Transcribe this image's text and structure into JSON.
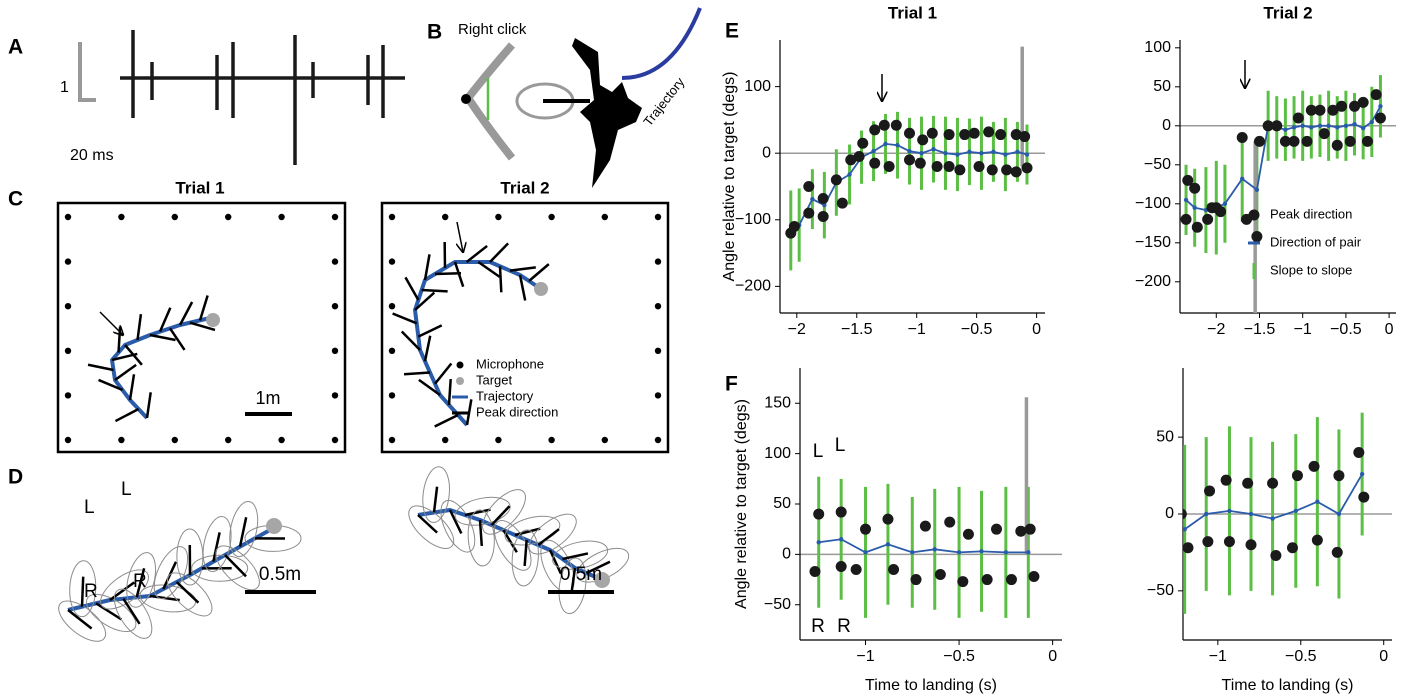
{
  "panels": {
    "a": {
      "label": "A",
      "scale_y": "1",
      "scale_x": "20 ms"
    },
    "b": {
      "label": "B",
      "click": "Right click",
      "trajectory": "Trajectory"
    },
    "c": {
      "label": "C",
      "titles": [
        "Trial 1",
        "Trial 2"
      ],
      "legend": [
        "Microphone",
        "Target",
        "Trajectory",
        "Peak direction"
      ],
      "scale": "1m"
    },
    "d": {
      "label": "D",
      "sides": [
        "L",
        "L",
        "R",
        "R"
      ],
      "scales": [
        "0.5m",
        "0.5m"
      ]
    },
    "e": {
      "label": "E"
    },
    "f": {
      "label": "F"
    }
  },
  "chart_data": [
    {
      "type": "errorbar",
      "title": "Trial 1",
      "ylabel": "Angle relative to target (degs)",
      "xlim": [
        -2.14,
        0.07
      ],
      "ylim": [
        -240,
        170
      ],
      "xticks": [
        {
          "value": -2,
          "label": "−2"
        },
        {
          "value": -1.5,
          "label": "−1.5"
        },
        {
          "value": -1,
          "label": "−1"
        },
        {
          "value": -0.5,
          "label": "−0.5"
        },
        0
      ],
      "yticks": [
        {
          "value": -200,
          "label": "−200"
        },
        {
          "value": -100,
          "label": "−100"
        },
        0,
        100
      ],
      "series": [
        {
          "name": "Peak direction",
          "kind": "scatter",
          "color": "#1a1a1a",
          "x": [
            -2.05,
            -2.02,
            -1.9,
            -1.9,
            -1.78,
            -1.78,
            -1.67,
            -1.62,
            -1.55,
            -1.48,
            -1.45,
            -1.35,
            -1.35,
            -1.27,
            -1.23,
            -1.17,
            -1.06,
            -1.06,
            -0.97,
            -0.95,
            -0.87,
            -0.83,
            -0.73,
            -0.73,
            -0.64,
            -0.6,
            -0.52,
            -0.48,
            -0.4,
            -0.37,
            -0.3,
            -0.25,
            -0.17,
            -0.17,
            -0.1,
            -0.08
          ],
          "values": [
            -120,
            -110,
            -90,
            -50,
            -95,
            -68,
            -40,
            -75,
            -10,
            -5,
            15,
            -15,
            35,
            42,
            -20,
            42,
            -10,
            30,
            -15,
            20,
            30,
            -20,
            28,
            -20,
            -25,
            28,
            30,
            -20,
            32,
            -25,
            28,
            -25,
            -28,
            28,
            25,
            -22
          ]
        },
        {
          "name": "Direction of pair",
          "kind": "line",
          "color": "#2a5caa",
          "x": [
            -2.05,
            -1.98,
            -1.87,
            -1.77,
            -1.67,
            -1.56,
            -1.46,
            -1.36,
            -1.26,
            -1.16,
            -1.06,
            -0.96,
            -0.86,
            -0.76,
            -0.66,
            -0.56,
            -0.46,
            -0.36,
            -0.26,
            -0.16,
            -0.08
          ],
          "values": [
            -116,
            -108,
            -69,
            -78,
            -44,
            -32,
            -6,
            3,
            14,
            12,
            3,
            0,
            6,
            0,
            -2,
            2,
            0,
            2,
            -2,
            2,
            -2
          ]
        },
        {
          "name": "Slope to slope",
          "kind": "errorbar",
          "color": "#5cbf45",
          "x": [
            -2.05,
            -1.98,
            -1.87,
            -1.77,
            -1.67,
            -1.56,
            -1.46,
            -1.36,
            -1.26,
            -1.16,
            -1.06,
            -0.96,
            -0.86,
            -0.76,
            -0.66,
            -0.56,
            -0.46,
            -0.36,
            -0.26,
            -0.16,
            -0.08
          ],
          "values": [
            -116,
            -108,
            -69,
            -78,
            -44,
            -32,
            -6,
            3,
            14,
            12,
            3,
            0,
            6,
            0,
            -2,
            2,
            0,
            2,
            -2,
            2,
            -2
          ],
          "errors": [
            60,
            55,
            45,
            50,
            50,
            45,
            40,
            45,
            45,
            50,
            50,
            55,
            50,
            55,
            55,
            50,
            55,
            45,
            55,
            45,
            45
          ]
        },
        {
          "kind": "errorbar",
          "color": "#999999",
          "x": [
            -0.12
          ],
          "values": [
            70
          ],
          "errors": [
            90
          ]
        }
      ]
    },
    {
      "type": "errorbar",
      "title": "Trial 2",
      "legend": "lower right",
      "xlim": [
        -2.42,
        0.08
      ],
      "ylim": [
        -240,
        110
      ],
      "xticks": [
        {
          "value": -2,
          "label": "−2"
        },
        {
          "value": -1.5,
          "label": "−1.5"
        },
        {
          "value": -1,
          "label": "−1"
        },
        {
          "value": -0.5,
          "label": "−0.5"
        },
        0
      ],
      "yticks": [
        {
          "value": -200,
          "label": "−200"
        },
        {
          "value": -150,
          "label": "−150"
        },
        {
          "value": -100,
          "label": "−100"
        },
        {
          "value": -50,
          "label": "−50"
        },
        0,
        50,
        100
      ],
      "series": [
        {
          "name": "Peak direction",
          "kind": "scatter",
          "color": "#1a1a1a",
          "x": [
            -2.35,
            -2.33,
            -2.25,
            -2.22,
            -2.1,
            -2.05,
            -2.0,
            -1.95,
            -1.7,
            -1.65,
            -1.53,
            -1.5,
            -1.4,
            -1.3,
            -1.2,
            -1.1,
            -1.05,
            -0.95,
            -0.9,
            -0.8,
            -0.75,
            -0.65,
            -0.6,
            -0.55,
            -0.45,
            -0.4,
            -0.3,
            -0.25,
            -0.15,
            -0.1
          ],
          "values": [
            -120,
            -70,
            -80,
            -130,
            -120,
            -105,
            -105,
            -110,
            -15,
            -120,
            -142,
            -20,
            0,
            0,
            -20,
            -20,
            10,
            -20,
            20,
            20,
            -10,
            20,
            -25,
            25,
            -20,
            25,
            30,
            -20,
            40,
            10
          ]
        },
        {
          "name": "Direction of pair",
          "kind": "line",
          "color": "#2a5caa",
          "x": [
            -2.35,
            -2.25,
            -2.12,
            -2.0,
            -1.9,
            -1.7,
            -1.53,
            -1.4,
            -1.3,
            -1.2,
            -1.1,
            -1.0,
            -0.9,
            -0.8,
            -0.7,
            -0.6,
            -0.5,
            -0.4,
            -0.3,
            -0.2,
            -0.1
          ],
          "values": [
            -95,
            -105,
            -108,
            -105,
            -100,
            -68,
            -82,
            0,
            -2,
            -5,
            -2,
            0,
            -2,
            0,
            0,
            -2,
            0,
            2,
            -3,
            5,
            25
          ]
        },
        {
          "name": "Slope to slope",
          "kind": "errorbar",
          "color": "#5cbf45",
          "x": [
            -2.35,
            -2.25,
            -2.12,
            -2.0,
            -1.9,
            -1.7,
            -1.53,
            -1.4,
            -1.3,
            -1.2,
            -1.1,
            -1.0,
            -0.9,
            -0.8,
            -0.7,
            -0.6,
            -0.5,
            -0.4,
            -0.3,
            -0.2,
            -0.1
          ],
          "values": [
            -95,
            -105,
            -108,
            -105,
            -100,
            -68,
            -82,
            0,
            -2,
            -5,
            -2,
            0,
            -2,
            0,
            0,
            -2,
            0,
            2,
            -3,
            5,
            25
          ],
          "errors": [
            45,
            50,
            55,
            60,
            50,
            55,
            60,
            45,
            40,
            40,
            40,
            45,
            40,
            40,
            45,
            40,
            45,
            40,
            40,
            45,
            40
          ]
        },
        {
          "kind": "errorbar",
          "color": "#999999",
          "x": [
            -1.55
          ],
          "values": [
            -130
          ],
          "errors": [
            110
          ]
        }
      ]
    },
    {
      "type": "errorbar",
      "ylabel": "Angle relative to target (degs)",
      "xlabel": "Time to landing (s)",
      "annotations": [
        "L",
        "L",
        "R",
        "R"
      ],
      "xlim": [
        -1.35,
        0.05
      ],
      "ylim": [
        -85,
        185
      ],
      "xticks": [
        {
          "value": -1,
          "label": "−1"
        },
        {
          "value": -0.5,
          "label": "−0.5"
        },
        0
      ],
      "yticks": [
        {
          "value": -50,
          "label": "−50"
        },
        0,
        50,
        100,
        150
      ],
      "series": [
        {
          "name": "Peak direction",
          "kind": "scatter",
          "color": "#1a1a1a",
          "x": [
            -1.25,
            -1.27,
            -1.13,
            -1.13,
            -1.05,
            -1.0,
            -0.88,
            -0.85,
            -0.73,
            -0.68,
            -0.6,
            -0.55,
            -0.48,
            -0.45,
            -0.35,
            -0.3,
            -0.22,
            -0.17,
            -0.12,
            -0.1
          ],
          "values": [
            40,
            -17,
            42,
            -12,
            -15,
            25,
            35,
            -15,
            -25,
            28,
            -20,
            32,
            -27,
            20,
            -25,
            25,
            -25,
            23,
            25,
            -22
          ]
        },
        {
          "name": "Direction of pair",
          "kind": "line",
          "color": "#2a5caa",
          "x": [
            -1.25,
            -1.13,
            -1.0,
            -0.88,
            -0.75,
            -0.63,
            -0.5,
            -0.38,
            -0.25,
            -0.13
          ],
          "values": [
            12,
            15,
            2,
            10,
            2,
            5,
            2,
            3,
            2,
            2
          ]
        },
        {
          "name": "Slope to slope",
          "kind": "errorbar",
          "color": "#5cbf45",
          "x": [
            -1.25,
            -1.13,
            -1.0,
            -0.88,
            -0.75,
            -0.63,
            -0.5,
            -0.38,
            -0.25,
            -0.13
          ],
          "values": [
            12,
            15,
            2,
            10,
            2,
            5,
            2,
            3,
            2,
            2
          ],
          "errors": [
            65,
            60,
            65,
            60,
            55,
            60,
            65,
            60,
            65,
            65
          ]
        },
        {
          "kind": "errorbar",
          "color": "#999999",
          "x": [
            -0.14
          ],
          "values": [
            78
          ],
          "errors": [
            78
          ]
        }
      ]
    },
    {
      "type": "errorbar",
      "xlabel": "Time to landing (s)",
      "xlim": [
        -1.21,
        0.05
      ],
      "ylim": [
        -82,
        95
      ],
      "xticks": [
        {
          "value": -1,
          "label": "−1"
        },
        {
          "value": -0.5,
          "label": "−0.5"
        },
        0
      ],
      "yticks": [
        {
          "value": -50,
          "label": "−50"
        },
        0,
        50
      ],
      "series": [
        {
          "name": "Peak direction",
          "kind": "scatter",
          "color": "#1a1a1a",
          "x": [
            -1.22,
            -1.18,
            -1.06,
            -1.05,
            -0.95,
            -0.93,
            -0.82,
            -0.8,
            -0.67,
            -0.65,
            -0.55,
            -0.52,
            -0.42,
            -0.4,
            -0.27,
            -0.28,
            -0.15,
            -0.12
          ],
          "values": [
            0,
            -22,
            -18,
            15,
            22,
            -18,
            20,
            -20,
            20,
            -27,
            -22,
            25,
            31,
            -17,
            25,
            -25,
            40,
            11
          ]
        },
        {
          "name": "Direction of pair",
          "kind": "line",
          "color": "#2a5caa",
          "x": [
            -1.2,
            -1.07,
            -0.93,
            -0.8,
            -0.67,
            -0.53,
            -0.4,
            -0.27,
            -0.13
          ],
          "values": [
            -10,
            0,
            2,
            0,
            -3,
            2,
            8,
            0,
            26
          ]
        },
        {
          "name": "Slope to slope",
          "kind": "errorbar",
          "color": "#5cbf45",
          "x": [
            -1.2,
            -1.07,
            -0.93,
            -0.8,
            -0.67,
            -0.53,
            -0.4,
            -0.27,
            -0.13
          ],
          "values": [
            -10,
            0,
            2,
            0,
            -3,
            2,
            8,
            0,
            26
          ],
          "errors": [
            55,
            50,
            55,
            50,
            50,
            50,
            55,
            55,
            40
          ]
        }
      ]
    }
  ]
}
